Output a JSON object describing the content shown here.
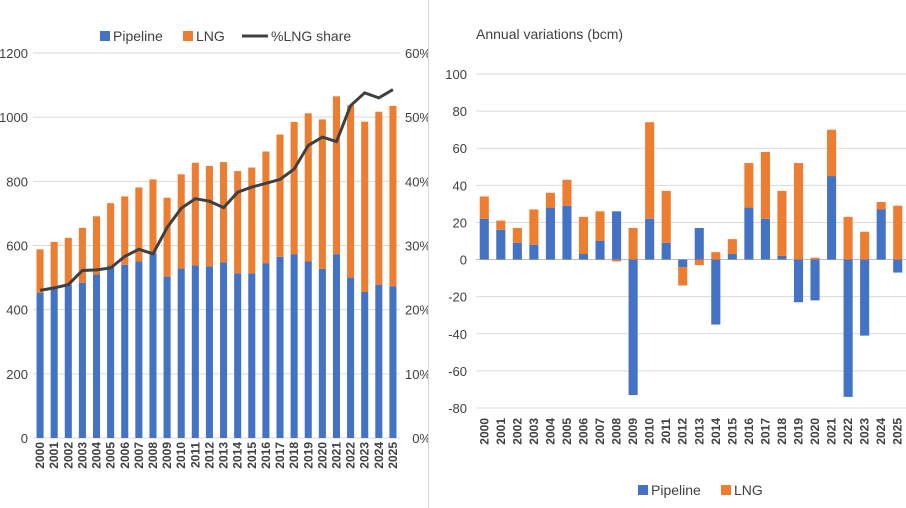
{
  "colors": {
    "pipeline": "#4472C4",
    "lng": "#ED7D31",
    "share": "#404040",
    "grid": "#D9D9D9",
    "text": "#404040"
  },
  "chart_data": [
    {
      "type": "bar",
      "stacked": true,
      "title": "",
      "legend": {
        "placement": "top",
        "entries": [
          "Pipeline",
          "LNG",
          "%LNG share"
        ]
      },
      "categories": [
        "2000",
        "2001",
        "2002",
        "2003",
        "2004",
        "2005",
        "2006",
        "2007",
        "2008",
        "2009",
        "2010",
        "2011",
        "2012",
        "2013",
        "2014",
        "2015",
        "2016",
        "2017",
        "2018",
        "2019",
        "2020",
        "2021",
        "2022",
        "2023",
        "2024",
        "2025"
      ],
      "series": [
        {
          "name": "Pipeline",
          "values": [
            453,
            468,
            478,
            484,
            510,
            538,
            540,
            550,
            575,
            503,
            528,
            538,
            535,
            547,
            513,
            513,
            545,
            565,
            572,
            550,
            527,
            573,
            500,
            455,
            478,
            473
          ]
        },
        {
          "name": "LNG",
          "values": [
            135,
            143,
            146,
            171,
            181,
            194,
            213,
            231,
            231,
            246,
            294,
            320,
            313,
            313,
            319,
            330,
            348,
            381,
            413,
            462,
            466,
            492,
            537,
            531,
            539,
            562
          ]
        }
      ],
      "line_series": {
        "name": "%LNG share",
        "axis": "right",
        "values": [
          23,
          23.4,
          23.9,
          26.1,
          26.2,
          26.5,
          28.3,
          29.4,
          28.7,
          32.8,
          35.8,
          37.3,
          36.9,
          35.9,
          38.3,
          39.1,
          39.7,
          40.3,
          41.9,
          45.6,
          46.9,
          46.2,
          51.8,
          53.8,
          53.0,
          54.3
        ]
      },
      "yaxis_left": {
        "min": 0,
        "max": 1200,
        "ticks": [
          "0",
          "200",
          "400",
          "600",
          "800",
          "1000",
          "1200"
        ]
      },
      "yaxis_right": {
        "min": 0,
        "max": 60,
        "ticks": [
          "0%",
          "10%",
          "20%",
          "30%",
          "40%",
          "50%",
          "60%"
        ]
      },
      "grid": true
    },
    {
      "type": "bar",
      "stacked": true,
      "title": "Annual variations (bcm)",
      "legend": {
        "placement": "bottom",
        "entries": [
          "Pipeline",
          "LNG"
        ]
      },
      "categories": [
        "2000",
        "2001",
        "2002",
        "2003",
        "2004",
        "2005",
        "2006",
        "2007",
        "2008",
        "2009",
        "2010",
        "2011",
        "2012",
        "2013",
        "2014",
        "2015",
        "2016",
        "2017",
        "2018",
        "2019",
        "2020",
        "2021",
        "2022",
        "2023",
        "2024",
        "2025"
      ],
      "series": [
        {
          "name": "Pipeline",
          "values": [
            22,
            16,
            9,
            8,
            28,
            29,
            3,
            10,
            26,
            -73,
            22,
            9,
            -4,
            17,
            -35,
            3,
            28,
            22,
            2,
            -23,
            -22,
            45,
            -74,
            -41,
            27,
            -7
          ]
        },
        {
          "name": "LNG",
          "values": [
            12,
            5,
            8,
            19,
            8,
            14,
            20,
            16,
            -1,
            17,
            52,
            28,
            -10,
            -3,
            4,
            8,
            24,
            36,
            35,
            52,
            1,
            25,
            23,
            15,
            4,
            29
          ]
        }
      ],
      "yaxis": {
        "min": -80,
        "max": 100,
        "ticks": [
          "-80",
          "-60",
          "-40",
          "-20",
          "0",
          "20",
          "40",
          "60",
          "80",
          "100"
        ]
      },
      "grid": true
    }
  ]
}
